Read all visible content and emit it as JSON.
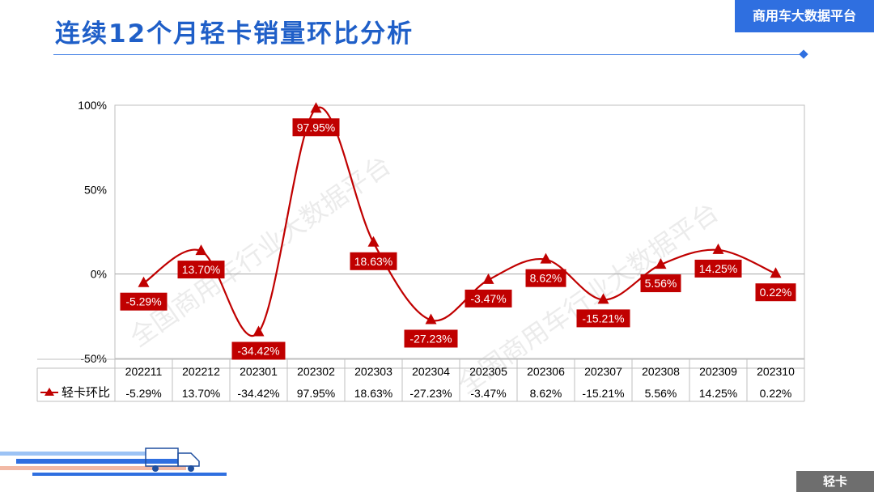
{
  "header": {
    "title": "连续12个月轻卡销量环比分析",
    "brand": "商用车大数据平台"
  },
  "footer": {
    "tag": "轻卡"
  },
  "watermark": {
    "text": "全国商用车行业大数据平台"
  },
  "colors": {
    "series": "#c00000",
    "title": "#1f5fc8",
    "brand_bg": "#2f6fe0",
    "footer_bg": "#6e6e6e"
  },
  "chart_data": {
    "type": "line",
    "smooth": true,
    "marker": "triangle",
    "title": "",
    "xlabel": "",
    "ylabel": "",
    "categories": [
      "202211",
      "202212",
      "202301",
      "202302",
      "202303",
      "202304",
      "202305",
      "202306",
      "202307",
      "202308",
      "202309",
      "202310"
    ],
    "series": [
      {
        "name": "轻卡环比",
        "values": [
          -5.29,
          13.7,
          -34.42,
          97.95,
          18.63,
          -27.23,
          -3.47,
          8.62,
          -15.21,
          5.56,
          14.25,
          0.22
        ],
        "labels": [
          "-5.29%",
          "13.70%",
          "-34.42%",
          "97.95%",
          "18.63%",
          "-27.23%",
          "-3.47%",
          "8.62%",
          "-15.21%",
          "5.56%",
          "14.25%",
          "0.22%"
        ]
      }
    ],
    "ylim": [
      -50,
      100
    ],
    "yticks": [
      -50,
      0,
      50,
      100
    ],
    "ytick_labels": [
      "-50%",
      "0%",
      "50%",
      "100%"
    ],
    "grid": false,
    "data_table": true
  }
}
